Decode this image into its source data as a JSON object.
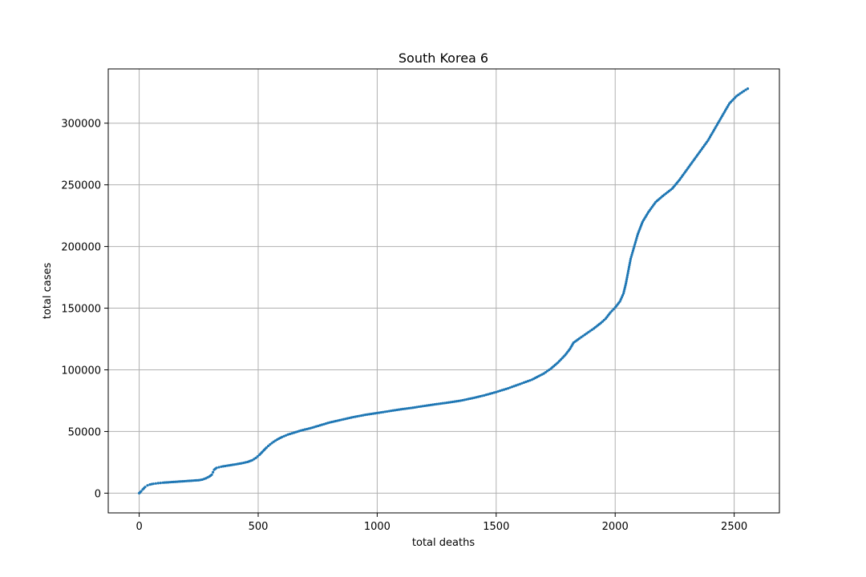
{
  "chart_data": {
    "type": "scatter",
    "title": "South Korea 6",
    "xlabel": "total deaths",
    "ylabel": "total cases",
    "xlim": [
      -130,
      2690
    ],
    "ylim": [
      -16000,
      344000
    ],
    "xticks": [
      0,
      500,
      1000,
      1500,
      2000,
      2500
    ],
    "yticks": [
      0,
      50000,
      100000,
      150000,
      200000,
      250000,
      300000
    ],
    "xtick_labels": [
      "0",
      "500",
      "1000",
      "1500",
      "2000",
      "2500"
    ],
    "ytick_labels": [
      "0",
      "50000",
      "100000",
      "150000",
      "200000",
      "250000",
      "300000"
    ],
    "grid": true,
    "marker_color": "#1f77b4",
    "series": [
      {
        "points": [
          [
            0,
            0
          ],
          [
            3,
            500
          ],
          [
            8,
            1500
          ],
          [
            15,
            3000
          ],
          [
            25,
            5000
          ],
          [
            35,
            6300
          ],
          [
            45,
            7000
          ],
          [
            60,
            7600
          ],
          [
            80,
            8100
          ],
          [
            100,
            8500
          ],
          [
            130,
            8900
          ],
          [
            160,
            9300
          ],
          [
            190,
            9700
          ],
          [
            220,
            10100
          ],
          [
            250,
            10500
          ],
          [
            265,
            11000
          ],
          [
            280,
            12000
          ],
          [
            295,
            13500
          ],
          [
            305,
            15000
          ],
          [
            310,
            17000
          ],
          [
            315,
            19000
          ],
          [
            325,
            20500
          ],
          [
            345,
            21500
          ],
          [
            370,
            22300
          ],
          [
            400,
            23200
          ],
          [
            430,
            24200
          ],
          [
            455,
            25300
          ],
          [
            475,
            26700
          ],
          [
            490,
            28500
          ],
          [
            505,
            31000
          ],
          [
            520,
            34000
          ],
          [
            535,
            37000
          ],
          [
            550,
            39500
          ],
          [
            565,
            41700
          ],
          [
            580,
            43500
          ],
          [
            600,
            45500
          ],
          [
            625,
            47500
          ],
          [
            650,
            49000
          ],
          [
            680,
            50800
          ],
          [
            720,
            52700
          ],
          [
            760,
            55000
          ],
          [
            800,
            57300
          ],
          [
            850,
            59500
          ],
          [
            900,
            61700
          ],
          [
            950,
            63500
          ],
          [
            1000,
            65000
          ],
          [
            1050,
            66500
          ],
          [
            1100,
            68000
          ],
          [
            1150,
            69300
          ],
          [
            1200,
            70800
          ],
          [
            1250,
            72200
          ],
          [
            1300,
            73500
          ],
          [
            1350,
            75000
          ],
          [
            1400,
            77000
          ],
          [
            1450,
            79300
          ],
          [
            1500,
            82000
          ],
          [
            1550,
            85000
          ],
          [
            1600,
            88500
          ],
          [
            1650,
            92000
          ],
          [
            1700,
            97000
          ],
          [
            1730,
            101000
          ],
          [
            1760,
            106000
          ],
          [
            1790,
            112000
          ],
          [
            1810,
            117000
          ],
          [
            1825,
            122000
          ],
          [
            1850,
            125500
          ],
          [
            1880,
            129500
          ],
          [
            1910,
            133500
          ],
          [
            1940,
            138000
          ],
          [
            1960,
            141500
          ],
          [
            1980,
            146500
          ],
          [
            2000,
            150500
          ],
          [
            2020,
            155500
          ],
          [
            2035,
            162000
          ],
          [
            2045,
            170000
          ],
          [
            2055,
            180000
          ],
          [
            2065,
            190000
          ],
          [
            2080,
            200000
          ],
          [
            2095,
            210000
          ],
          [
            2115,
            220000
          ],
          [
            2140,
            228000
          ],
          [
            2170,
            236000
          ],
          [
            2200,
            241000
          ],
          [
            2240,
            247000
          ],
          [
            2270,
            254000
          ],
          [
            2300,
            262000
          ],
          [
            2330,
            270000
          ],
          [
            2360,
            278000
          ],
          [
            2390,
            286000
          ],
          [
            2420,
            296000
          ],
          [
            2450,
            306000
          ],
          [
            2480,
            316000
          ],
          [
            2510,
            322000
          ],
          [
            2540,
            326000
          ],
          [
            2557,
            328000
          ]
        ]
      }
    ]
  }
}
